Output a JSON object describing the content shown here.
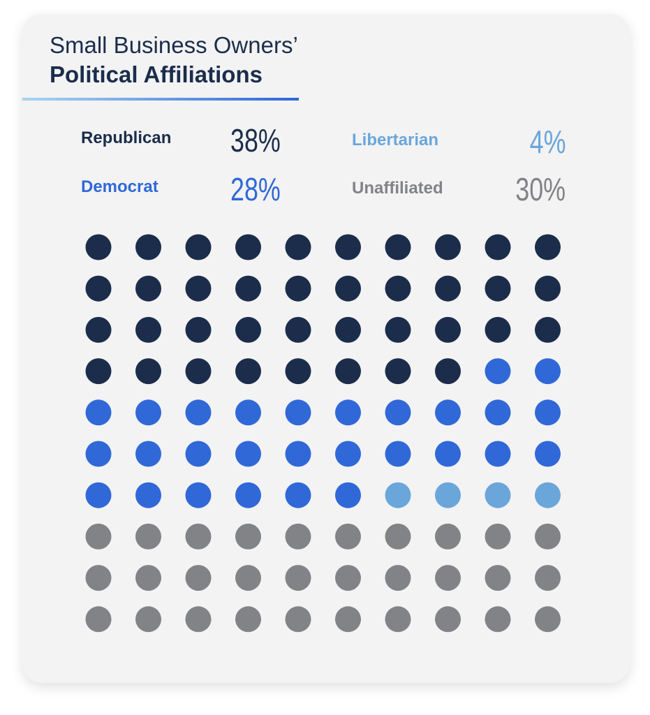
{
  "chart_data": {
    "type": "waffle",
    "title_line1": "Small Business Owners’",
    "title_line2": "Political Affiliations",
    "grid": {
      "rows": 10,
      "cols": 10
    },
    "series": [
      {
        "name": "Republican",
        "value": 38,
        "label": "38%",
        "color": "#1b2d4b"
      },
      {
        "name": "Democrat",
        "value": 28,
        "label": "28%",
        "color": "#3068d8"
      },
      {
        "name": "Libertarian",
        "value": 4,
        "label": "4%",
        "color": "#6aa6da"
      },
      {
        "name": "Unaffiliated",
        "value": 30,
        "label": "30%",
        "color": "#828387"
      }
    ]
  }
}
